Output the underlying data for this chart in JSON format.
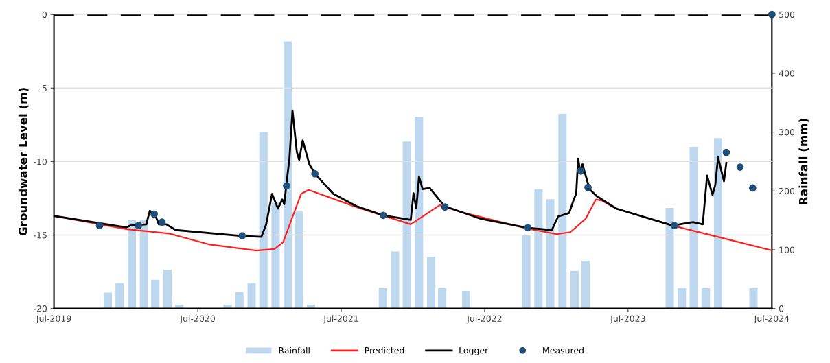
{
  "chart_data": {
    "type": "line",
    "xlabel": null,
    "ylabel": "Groundwater Level (m)",
    "y2label": "Rainfall (mm)",
    "xlim": [
      "2019-07-01",
      "2024-07-01"
    ],
    "xticks": [
      {
        "value": "2019-07-01",
        "label": "Jul-2019"
      },
      {
        "value": "2020-07-01",
        "label": "Jul-2020"
      },
      {
        "value": "2021-07-01",
        "label": "Jul-2021"
      },
      {
        "value": "2022-07-01",
        "label": "Jul-2022"
      },
      {
        "value": "2023-07-01",
        "label": "Jul-2023"
      },
      {
        "value": "2024-07-01",
        "label": "Jul-2024"
      }
    ],
    "ylim": [
      -20,
      0
    ],
    "yticks": [
      -20,
      -15,
      -10,
      -5,
      0
    ],
    "y2lim": [
      0,
      500
    ],
    "y2ticks": [
      0,
      100,
      200,
      300,
      400,
      500
    ],
    "grid": "y",
    "legend": "bottom",
    "ref_lines": [
      {
        "axis": "y",
        "value": 0,
        "color": "#000000",
        "line_style": "dashed"
      }
    ],
    "series": [
      {
        "name": "Rainfall",
        "type": "bar",
        "axis": "y2",
        "color": "#bdd7ee",
        "x": [
          "2019-11-15",
          "2019-12-15",
          "2020-01-15",
          "2020-02-15",
          "2020-03-15",
          "2020-04-15",
          "2020-05-15",
          "2020-09-15",
          "2020-10-15",
          "2020-11-15",
          "2020-12-15",
          "2021-01-15",
          "2021-02-15",
          "2021-03-15",
          "2021-04-15",
          "2021-10-15",
          "2021-11-15",
          "2021-12-15",
          "2022-01-15",
          "2022-02-15",
          "2022-03-15",
          "2022-05-15",
          "2022-10-15",
          "2022-11-15",
          "2022-12-15",
          "2023-01-15",
          "2023-02-15",
          "2023-03-15",
          "2023-10-15",
          "2023-11-15",
          "2023-12-15",
          "2024-01-15",
          "2024-02-15",
          "2024-05-15"
        ],
        "values": [
          27,
          43,
          150,
          150,
          49,
          66,
          7,
          7,
          28,
          43,
          300,
          180,
          454,
          165,
          7,
          35,
          97,
          284,
          326,
          88,
          35,
          30,
          125,
          203,
          186,
          331,
          64,
          81,
          171,
          35,
          275,
          35,
          290,
          35
        ]
      },
      {
        "name": "Predicted",
        "color": "#ff2020",
        "x": [
          "2019-07-01",
          "2020-01-01",
          "2020-04-20",
          "2020-08-01",
          "2020-11-27",
          "2021-01-12",
          "2021-02-03",
          "2021-02-28",
          "2021-03-21",
          "2021-04-09",
          "2021-08-09",
          "2021-12-25",
          "2022-03-09",
          "2022-05-01",
          "2022-10-21",
          "2023-01-01",
          "2023-02-04",
          "2023-03-15",
          "2023-04-10",
          "2023-04-25",
          "2023-06-01",
          "2023-10-22",
          "2024-07-01"
        ],
        "values": [
          -13.7,
          -14.6,
          -14.9,
          -15.65,
          -16.05,
          -15.95,
          -15.5,
          -13.7,
          -12.2,
          -11.93,
          -13.1,
          -14.27,
          -12.96,
          -13.43,
          -14.58,
          -14.94,
          -14.8,
          -13.9,
          -12.58,
          -12.65,
          -13.2,
          -14.35,
          -16.05
        ]
      },
      {
        "name": "Logger",
        "color": "#000000",
        "x": [
          "2019-07-01",
          "2020-01-01",
          "2020-01-12",
          "2020-02-21",
          "2020-03-01",
          "2020-03-15",
          "2020-03-24",
          "2020-04-12",
          "2020-05-06",
          "2020-10-16",
          "2020-12-10",
          "2020-12-22",
          "2021-01-06",
          "2021-01-21",
          "2021-02-01",
          "2021-02-06",
          "2021-02-14",
          "2021-02-19",
          "2021-02-27",
          "2021-03-10",
          "2021-03-16",
          "2021-03-25",
          "2021-04-11",
          "2021-04-25",
          "2021-06-11",
          "2021-08-09",
          "2021-10-16",
          "2021-12-25",
          "2022-01-01",
          "2022-01-08",
          "2022-01-15",
          "2022-01-24",
          "2022-02-11",
          "2022-03-21",
          "2022-06-22",
          "2022-10-16",
          "2022-12-19",
          "2023-01-04",
          "2023-02-01",
          "2023-02-12",
          "2023-02-19",
          "2023-02-24",
          "2023-03-01",
          "2023-03-07",
          "2023-03-25",
          "2023-04-12",
          "2023-06-01",
          "2023-10-22",
          "2023-12-13",
          "2024-01-07",
          "2024-01-18",
          "2024-02-01",
          "2024-02-08",
          "2024-02-15",
          "2024-03-01",
          "2024-03-07"
        ],
        "values": [
          -13.7,
          -14.48,
          -14.35,
          -14.27,
          -13.35,
          -13.66,
          -14.27,
          -14.27,
          -14.66,
          -15.05,
          -15.12,
          -14.27,
          -12.2,
          -13.2,
          -12.58,
          -12.9,
          -10.96,
          -9.88,
          -6.53,
          -9.34,
          -9.88,
          -8.56,
          -10.19,
          -10.83,
          -12.2,
          -13.04,
          -13.66,
          -13.97,
          -12.16,
          -13.2,
          -11.02,
          -11.88,
          -11.8,
          -13.04,
          -13.9,
          -14.5,
          -14.66,
          -13.74,
          -13.5,
          -12.65,
          -12.18,
          -9.8,
          -10.65,
          -10.19,
          -11.88,
          -12.35,
          -13.2,
          -14.35,
          -14.12,
          -14.27,
          -10.96,
          -12.27,
          -11.57,
          -9.72,
          -11.34,
          -10.1
        ]
      },
      {
        "name": "Measured",
        "type": "scatter",
        "marker": "circle",
        "color": "#1f4e79",
        "x": [
          "2019-10-25",
          "2020-02-01",
          "2020-03-12",
          "2020-04-01",
          "2020-10-22",
          "2021-02-12",
          "2021-04-25",
          "2021-10-16",
          "2022-03-22",
          "2022-10-19",
          "2023-03-03",
          "2023-03-21",
          "2023-10-27",
          "2024-03-07",
          "2024-04-11",
          "2024-05-13",
          "2024-07-01"
        ],
        "values": [
          -14.35,
          -14.35,
          -13.57,
          -14.12,
          -15.05,
          -11.65,
          -10.83,
          -13.66,
          -13.09,
          -14.5,
          -10.65,
          -11.76,
          -14.35,
          -9.38,
          -10.38,
          -11.8,
          0
        ]
      }
    ]
  }
}
